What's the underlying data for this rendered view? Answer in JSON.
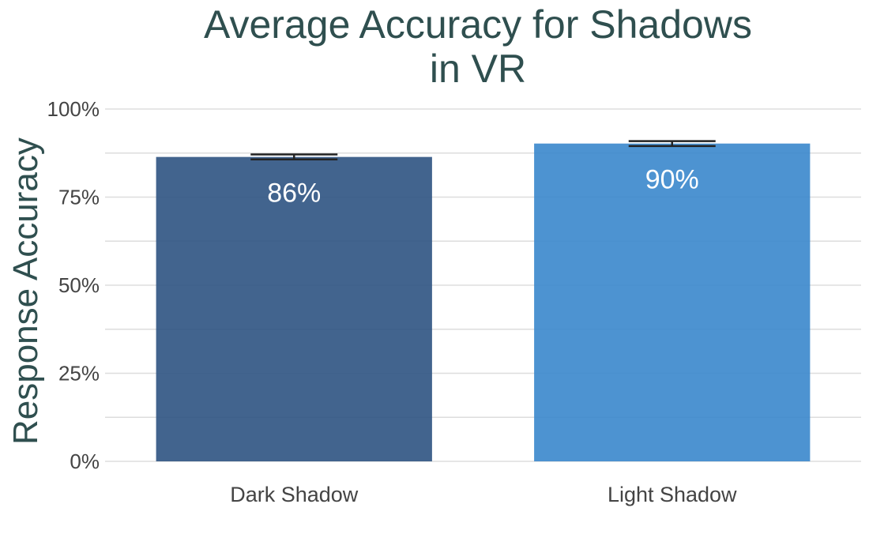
{
  "chart_data": {
    "type": "bar",
    "title_lines": [
      "Average Accuracy for Shadows",
      "in VR"
    ],
    "xlabel": "",
    "ylabel": "Response Accuracy",
    "categories": [
      "Dark Shadow",
      "Light Shadow"
    ],
    "values": [
      0.864,
      0.902
    ],
    "error_bars": [
      [
        0.857,
        0.871
      ],
      [
        0.895,
        0.909
      ]
    ],
    "data_labels": [
      "86%",
      "90%"
    ],
    "yticks": [
      0,
      0.25,
      0.5,
      0.75,
      1.0
    ],
    "ytick_labels": [
      "0%",
      "25%",
      "50%",
      "75%",
      "100%"
    ],
    "ylim": [
      0,
      1.0
    ],
    "grid": true,
    "colors": [
      "#2d5382",
      "#3a87cc"
    ],
    "text_color": "#2f4f4f",
    "tick_color": "#444444",
    "grid_color": "#dddddd"
  }
}
